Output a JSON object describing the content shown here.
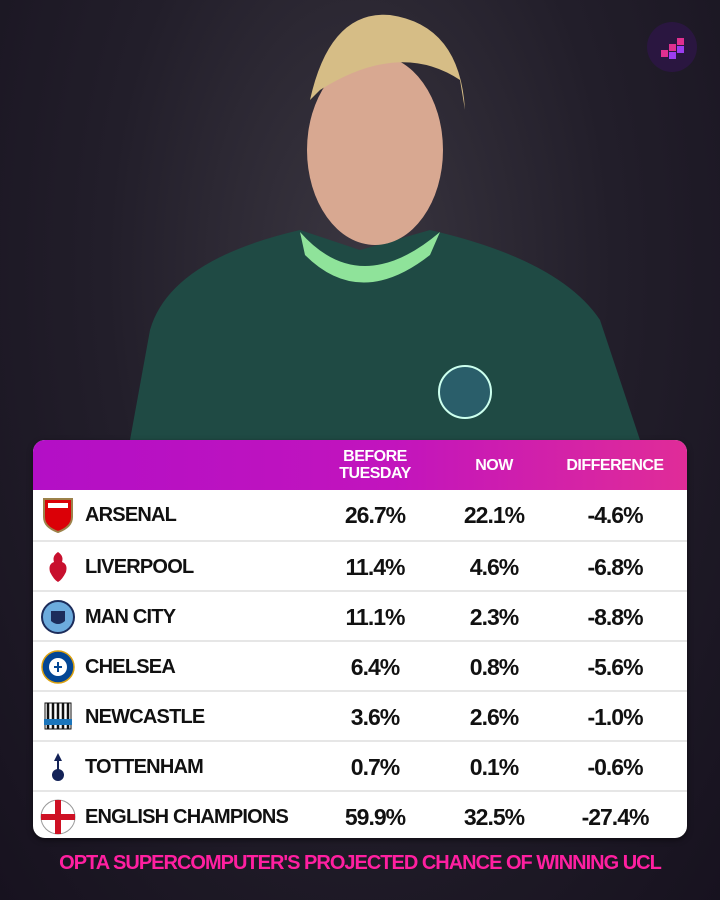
{
  "chart_data": {
    "type": "table",
    "columns": [
      "",
      "BEFORE TUESDAY",
      "NOW",
      "DIFFERENCE"
    ],
    "rows": [
      {
        "team": "ARSENAL",
        "logo": "arsenal-crest",
        "before": "26.7%",
        "now": "22.1%",
        "difference": "-4.6%"
      },
      {
        "team": "LIVERPOOL",
        "logo": "liverpool-crest",
        "before": "11.4%",
        "now": "4.6%",
        "difference": "-6.8%"
      },
      {
        "team": "MAN CITY",
        "logo": "man-city-crest",
        "before": "11.1%",
        "now": "2.3%",
        "difference": "-8.8%"
      },
      {
        "team": "CHELSEA",
        "logo": "chelsea-crest",
        "before": "6.4%",
        "now": "0.8%",
        "difference": "-5.6%"
      },
      {
        "team": "NEWCASTLE",
        "logo": "newcastle-crest",
        "before": "3.6%",
        "now": "2.6%",
        "difference": "-1.0%"
      },
      {
        "team": "TOTTENHAM",
        "logo": "tottenham-crest",
        "before": "0.7%",
        "now": "0.1%",
        "difference": "-0.6%"
      },
      {
        "team": "ENGLISH CHAMPIONS",
        "logo": "england-flag",
        "before": "59.9%",
        "now": "32.5%",
        "difference": "-27.4%"
      }
    ]
  },
  "header": {
    "before": "BEFORE TUESDAY",
    "now": "NOW",
    "difference": "DIFFERENCE"
  },
  "footer": {
    "caption": "OPTA SUPERCOMPUTER'S PROJECTED CHANCE OF WINNING UCL"
  },
  "colors": {
    "header_start": "#b30fc6",
    "header_end": "#e02c98",
    "caption": "#ff1fa0",
    "background": "#1d1826"
  }
}
